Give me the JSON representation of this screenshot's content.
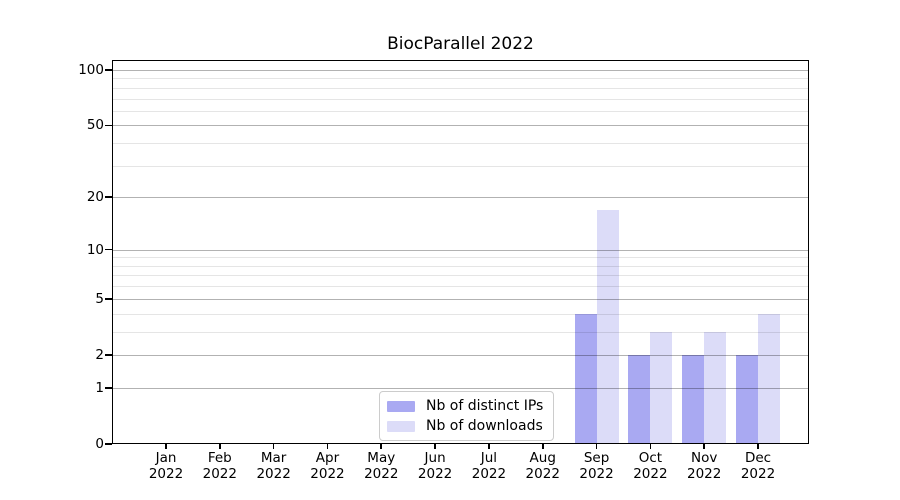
{
  "chart_data": {
    "type": "bar",
    "title": "BiocParallel 2022",
    "categories": [
      "Jan",
      "Feb",
      "Mar",
      "Apr",
      "May",
      "Jun",
      "Jul",
      "Aug",
      "Sep",
      "Oct",
      "Nov",
      "Dec"
    ],
    "category_year": "2022",
    "series": [
      {
        "name": "Nb of distinct IPs",
        "color": "#a9a9f2",
        "values": [
          0,
          0,
          0,
          0,
          0,
          0,
          0,
          0,
          4,
          2,
          2,
          2
        ]
      },
      {
        "name": "Nb of downloads",
        "color": "#dcdcf8",
        "values": [
          0,
          0,
          0,
          0,
          0,
          0,
          0,
          0,
          17,
          3,
          3,
          4
        ]
      }
    ],
    "y_scale": "log10(1+x)",
    "y_major_ticks": [
      0,
      1,
      2,
      5,
      10,
      20,
      50,
      100
    ],
    "y_minor_gridlines": [
      3,
      4,
      6,
      7,
      8,
      9,
      30,
      40,
      60,
      70,
      80,
      90
    ],
    "ylim": [
      0,
      113
    ],
    "xlabel": "",
    "ylabel": "",
    "grid": "horizontal gridlines drawn over bars",
    "legend_position": "lower center"
  },
  "colors": {
    "background": "#ffffff",
    "axis": "#000000",
    "major_grid": "rgba(0,0,0,0.30)",
    "minor_grid": "rgba(0,0,0,0.10)",
    "legend_border": "#cccccc",
    "text": "#000000"
  }
}
